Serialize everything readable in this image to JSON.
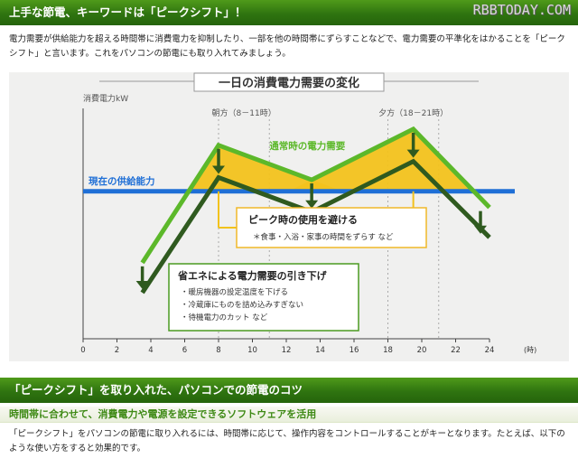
{
  "banners": {
    "top_title": "上手な節電、キーワードは「ピークシフト」！",
    "second_title": "「ピークシフト」を取り入れた、パソコンでの節電のコツ"
  },
  "watermark": "RBBTODAY.COM",
  "intro_text": "電力需要が供給能力を超える時間帯に消費電力を抑制したり、一部を他の時間帯にずらすことなどで、電力需要の平準化をはかることを「ピークシフト」と言います。これをパソコンの節電にも取り入れてみましょう。",
  "subheading": "時間帯に合わせて、消費電力や電源を設定できるソフトウェアを活用",
  "paragraph2": "「ピークシフト」をパソコンの節電に取り入れるには、時間帯に応じて、操作内容をコントロールすることがキーとなります。たとえば、以下のような使い方をすると効果的です。",
  "colors": {
    "banner_green": "#2f7410",
    "normal_line": "#5cb82a",
    "reduced_line": "#2f5a1f",
    "supply_line": "#1f6fd6",
    "peak_fill": "#f2c21c",
    "box_border_orange": "#f0b828",
    "box_border_green": "#4a9a20"
  },
  "chart_data": {
    "type": "line",
    "title": "一日の消費電力需要の変化",
    "ylabel": "消費電力kW",
    "x_unit": "(時)",
    "xlim": [
      0,
      24
    ],
    "ylim": [
      0,
      100
    ],
    "x_ticks": [
      0,
      2,
      4,
      6,
      8,
      10,
      12,
      14,
      16,
      18,
      20,
      22,
      24
    ],
    "series": [
      {
        "name": "通常時の電力需要",
        "x": [
          3.5,
          8,
          13.5,
          19.5,
          24
        ],
        "y": [
          33,
          84,
          69,
          91,
          57
        ]
      },
      {
        "name": "",
        "x": [
          3.5,
          8,
          13.5,
          19.5,
          24
        ],
        "y": [
          20,
          70,
          55,
          77,
          44
        ]
      }
    ],
    "supply_level": {
      "name": "現在の供給能力",
      "y": 64
    },
    "periods": [
      {
        "label": "朝方（8－11時）",
        "from": 8,
        "to": 11
      },
      {
        "label": "夕方（18－21時）",
        "from": 18,
        "to": 21
      }
    ],
    "callouts": {
      "peak_box": {
        "title": "ピーク時の使用を避ける",
        "lines": [
          "＊食事・入浴・家事の時間をずらす など"
        ]
      },
      "save_box": {
        "title": "省エネによる電力需要の引き下げ",
        "lines": [
          "・暖房機器の設定温度を下げる",
          "・冷蔵庫にものを詰め込みすぎない",
          "・待機電力のカット など"
        ]
      }
    }
  }
}
